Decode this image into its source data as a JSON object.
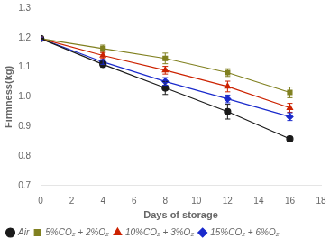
{
  "chart_data": {
    "type": "line",
    "xlabel": "Days of storage",
    "ylabel": "Firmness(kg)",
    "x": [
      0,
      4,
      8,
      12,
      16
    ],
    "series": [
      {
        "name": "Air",
        "color": "#1a1a1a",
        "marker": "circle",
        "values": [
          1.197,
          1.11,
          1.03,
          0.95,
          0.858
        ],
        "errors": [
          0.005,
          0.01,
          0.022,
          0.025,
          0.008
        ]
      },
      {
        "name": "5%CO₂ + 2%O₂",
        "color": "#808020",
        "marker": "square",
        "values": [
          1.197,
          1.163,
          1.13,
          1.082,
          1.015
        ],
        "errors": [
          0.005,
          0.012,
          0.018,
          0.013,
          0.018
        ]
      },
      {
        "name": "10%CO₂ + 3%O₂",
        "color": "#cc2200",
        "marker": "triangle",
        "values": [
          1.197,
          1.14,
          1.09,
          1.035,
          0.963
        ],
        "errors": [
          0.005,
          0.01,
          0.013,
          0.018,
          0.015
        ]
      },
      {
        "name": "15%CO₂ + 6%O₂",
        "color": "#1a2acc",
        "marker": "diamond",
        "values": [
          1.197,
          1.118,
          1.052,
          0.993,
          0.933
        ],
        "errors": [
          0.005,
          0.008,
          0.013,
          0.013,
          0.013
        ]
      }
    ],
    "xlim": [
      0,
      18
    ],
    "ylim": [
      0.7,
      1.3
    ],
    "xticks": [
      0,
      2,
      4,
      6,
      8,
      10,
      12,
      14,
      16,
      18
    ],
    "yticks": [
      0.7,
      0.8,
      0.9,
      {
        "value": 1,
        "label": "1.0"
      },
      1.1,
      1.2,
      1.3
    ],
    "grid": false,
    "legend": "lower left"
  }
}
